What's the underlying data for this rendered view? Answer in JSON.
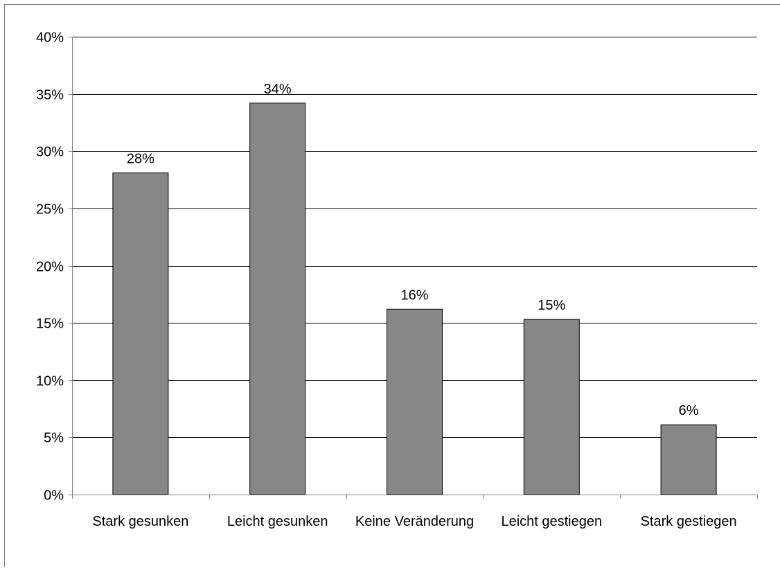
{
  "chart_data": {
    "type": "bar",
    "categories": [
      "Stark gesunken",
      "Leicht gesunken",
      "Keine Veränderung",
      "Leicht gestiegen",
      "Stark gestiegen"
    ],
    "values": [
      28.1,
      34.2,
      16.2,
      15.3,
      6.1
    ],
    "data_labels": [
      "28%",
      "34%",
      "16%",
      "15%",
      "6%"
    ],
    "ylim": [
      0,
      40
    ],
    "yticks": [
      0,
      5,
      10,
      15,
      20,
      25,
      30,
      35,
      40
    ],
    "ytick_labels": [
      "0%",
      "5%",
      "10%",
      "15%",
      "20%",
      "25%",
      "30%",
      "35%",
      "40%"
    ],
    "grid": true,
    "legend": "none",
    "colors": {
      "bar": "#878787",
      "bar_border": "#000000",
      "grid": "#000000",
      "axis": "#7f7f7f"
    }
  }
}
